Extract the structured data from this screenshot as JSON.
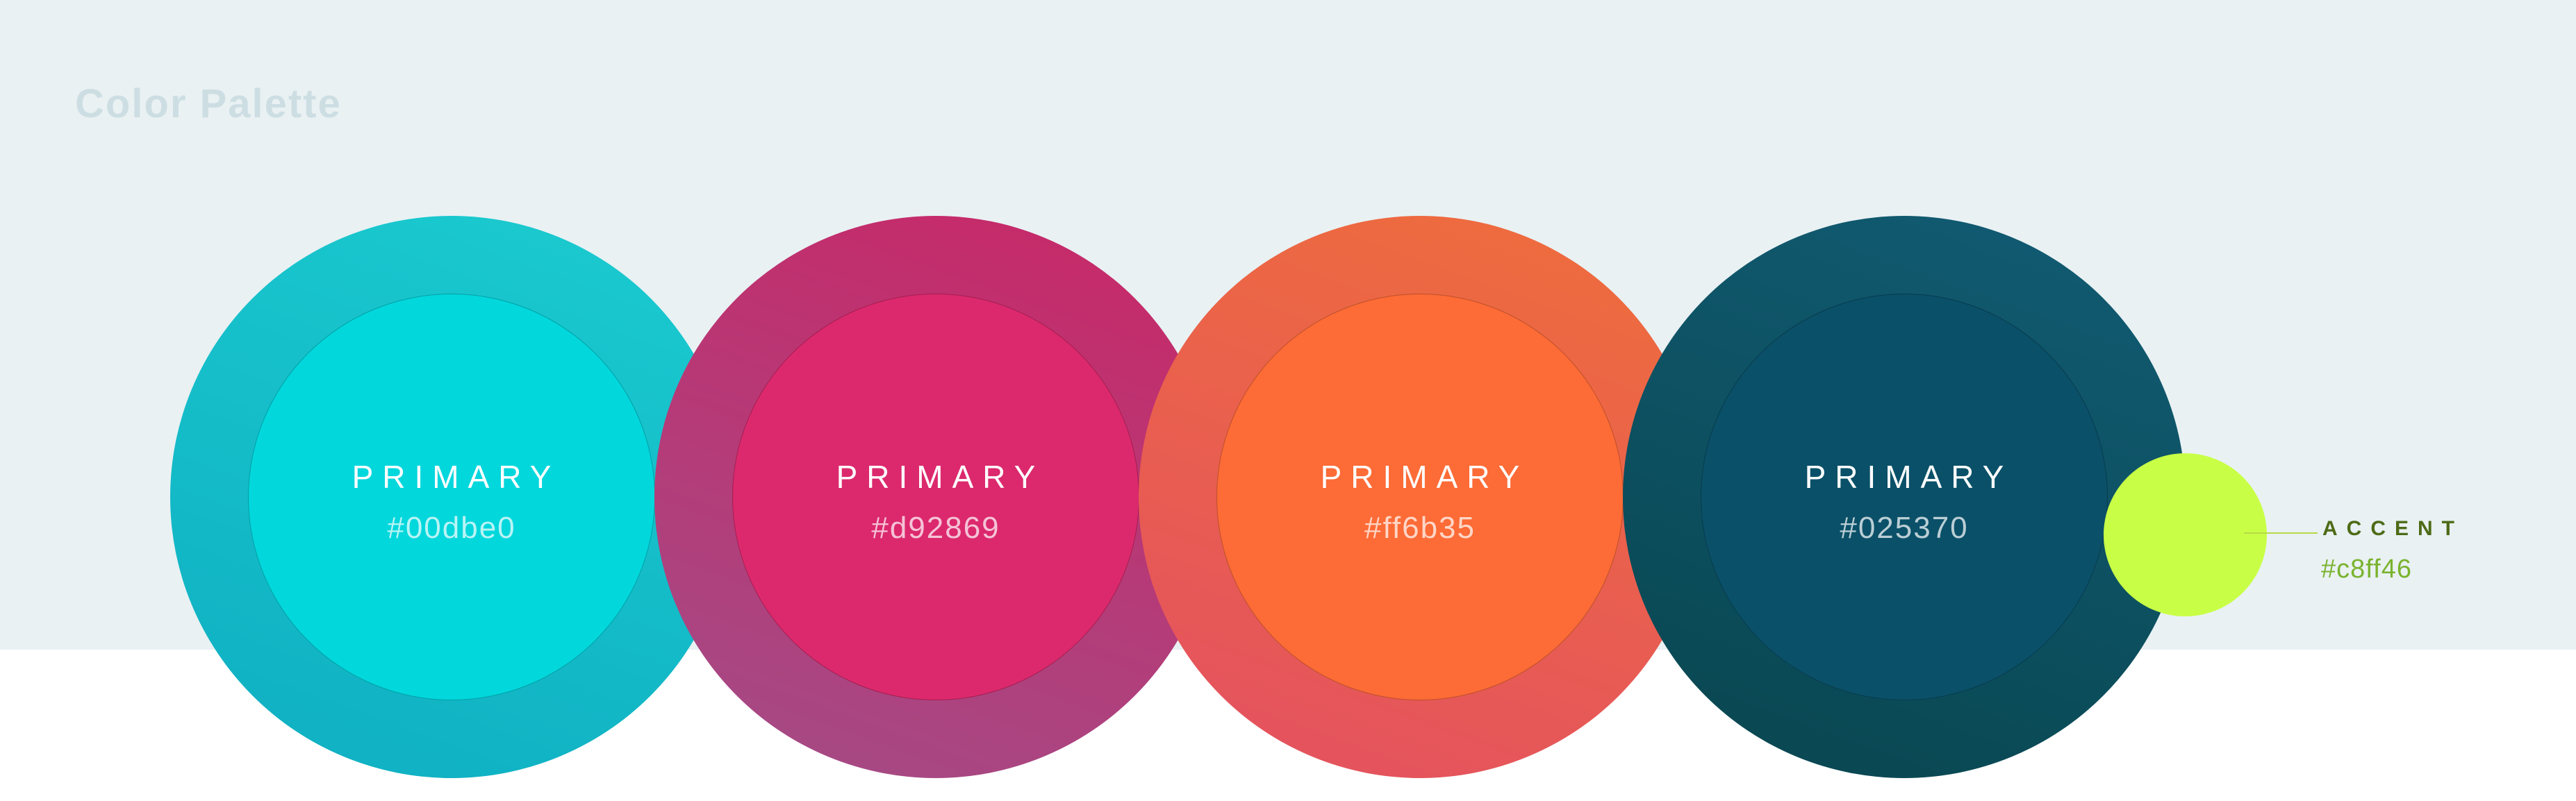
{
  "page": {
    "title": "Color Palette",
    "background_band_color": "#e9f1f3",
    "page_background_color": "#ffffff",
    "title_color": "#cddee3"
  },
  "swatches": [
    {
      "label": "PRIMARY",
      "hex": "#00dbe0",
      "fill": "#02d7dc",
      "gradient_top": "#1ac9cf",
      "gradient_bottom": "#0fb0c2"
    },
    {
      "label": "PRIMARY",
      "hex": "#d92869",
      "fill": "#dc296d",
      "gradient_top": "#c62a69",
      "gradient_bottom": "#a54a85"
    },
    {
      "label": "PRIMARY",
      "hex": "#ff6b35",
      "fill": "#fd6b36",
      "gradient_top": "#ee6c3e",
      "gradient_bottom": "#e4525f"
    },
    {
      "label": "PRIMARY",
      "hex": "#025370",
      "fill": "#0a5068",
      "gradient_top": "#115a71",
      "gradient_bottom": "#094751"
    }
  ],
  "accent": {
    "label": "ACCENT",
    "hex": "#c8ff46",
    "fill": "#c8ff46",
    "label_color": "#4d6b16",
    "hex_color": "#7ab32e",
    "line_color": "#b5da45"
  }
}
